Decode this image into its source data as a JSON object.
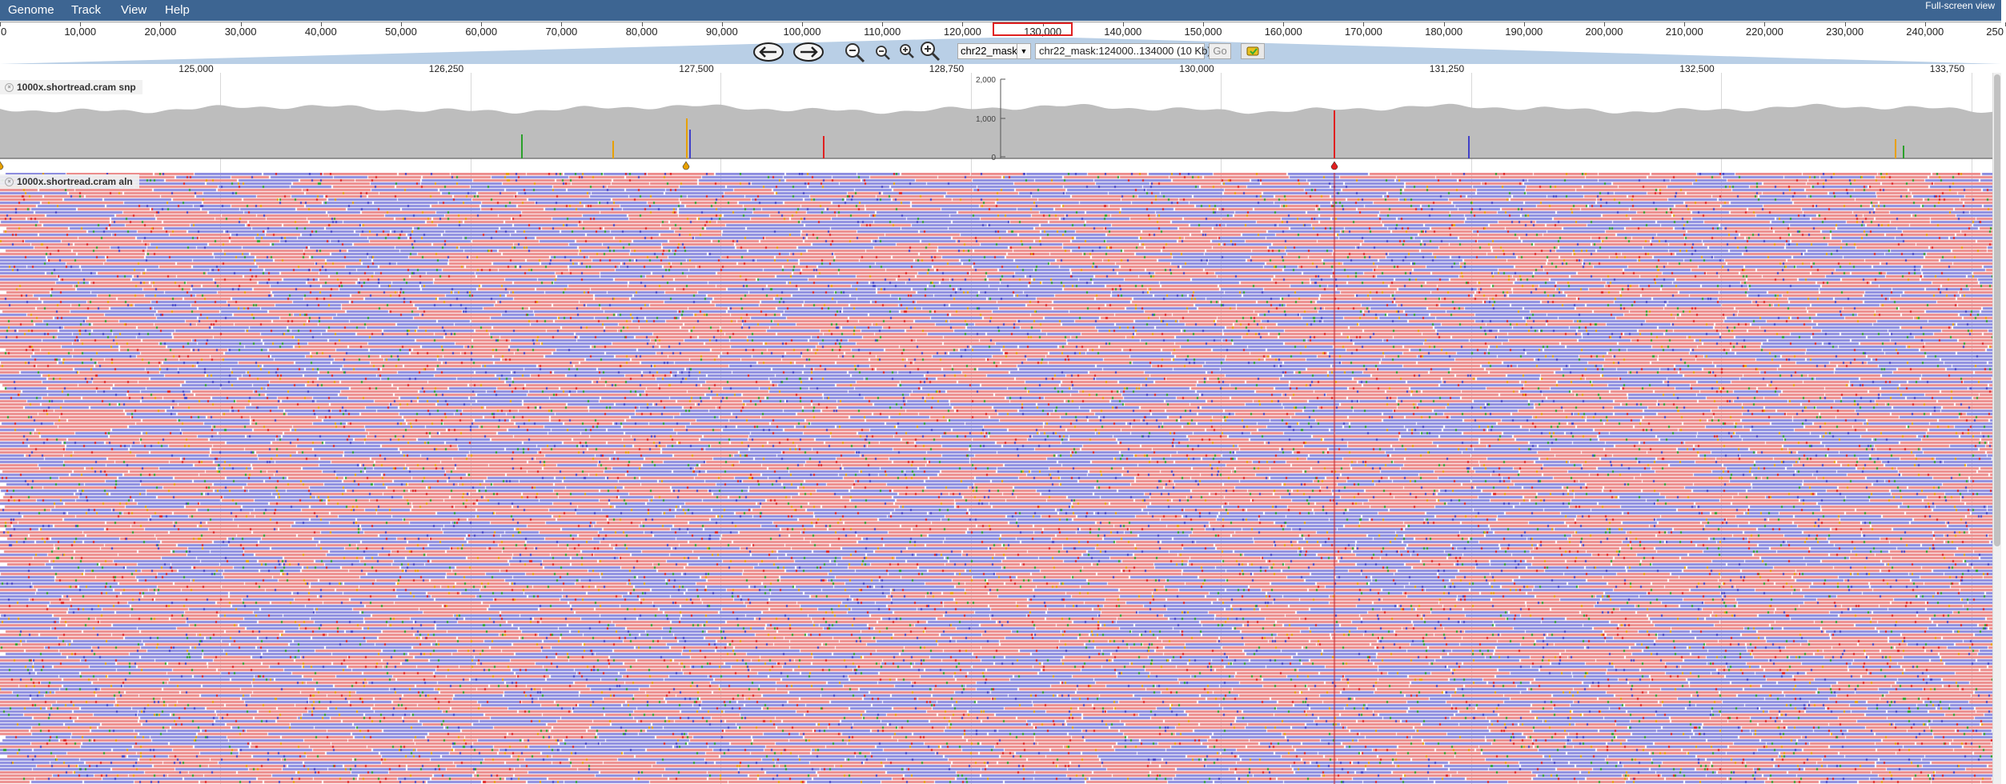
{
  "menu": {
    "genome": "Genome",
    "track": "Track",
    "view": "View",
    "help": "Help",
    "fullscreen": "Full-screen view"
  },
  "overview": {
    "ticks": [
      "0",
      "10,000",
      "20,000",
      "30,000",
      "40,000",
      "50,000",
      "60,000",
      "70,000",
      "80,000",
      "90,000",
      "100,000",
      "110,000",
      "120,000",
      "130,000",
      "140,000",
      "150,000",
      "160,000",
      "170,000",
      "180,000",
      "190,000",
      "200,000",
      "210,000",
      "220,000",
      "230,000",
      "240,000",
      "250"
    ]
  },
  "navigation": {
    "chromosome": "chr22_mask",
    "location": "chr22_mask:124000..134000 (10 Kb)",
    "go_label": "Go"
  },
  "detail_ruler": {
    "ticks": [
      "125,000",
      "126,250",
      "127,500",
      "128,750",
      "130,000",
      "131,250",
      "132,500",
      "133,750"
    ]
  },
  "snp_track": {
    "label": "1000x.shortread.cram snp",
    "axis_ticks": [
      "2,000",
      "1,000",
      "0"
    ],
    "colors": {
      "coverage": "#bdbdbd",
      "A": "#2aa02a",
      "C": "#4040c8",
      "G": "#e8a000",
      "T": "#e02020"
    }
  },
  "aln_track": {
    "label": "1000x.shortread.cram aln",
    "colors": {
      "forward": "#ec8b8b",
      "reverse": "#8c8cdf"
    }
  }
}
